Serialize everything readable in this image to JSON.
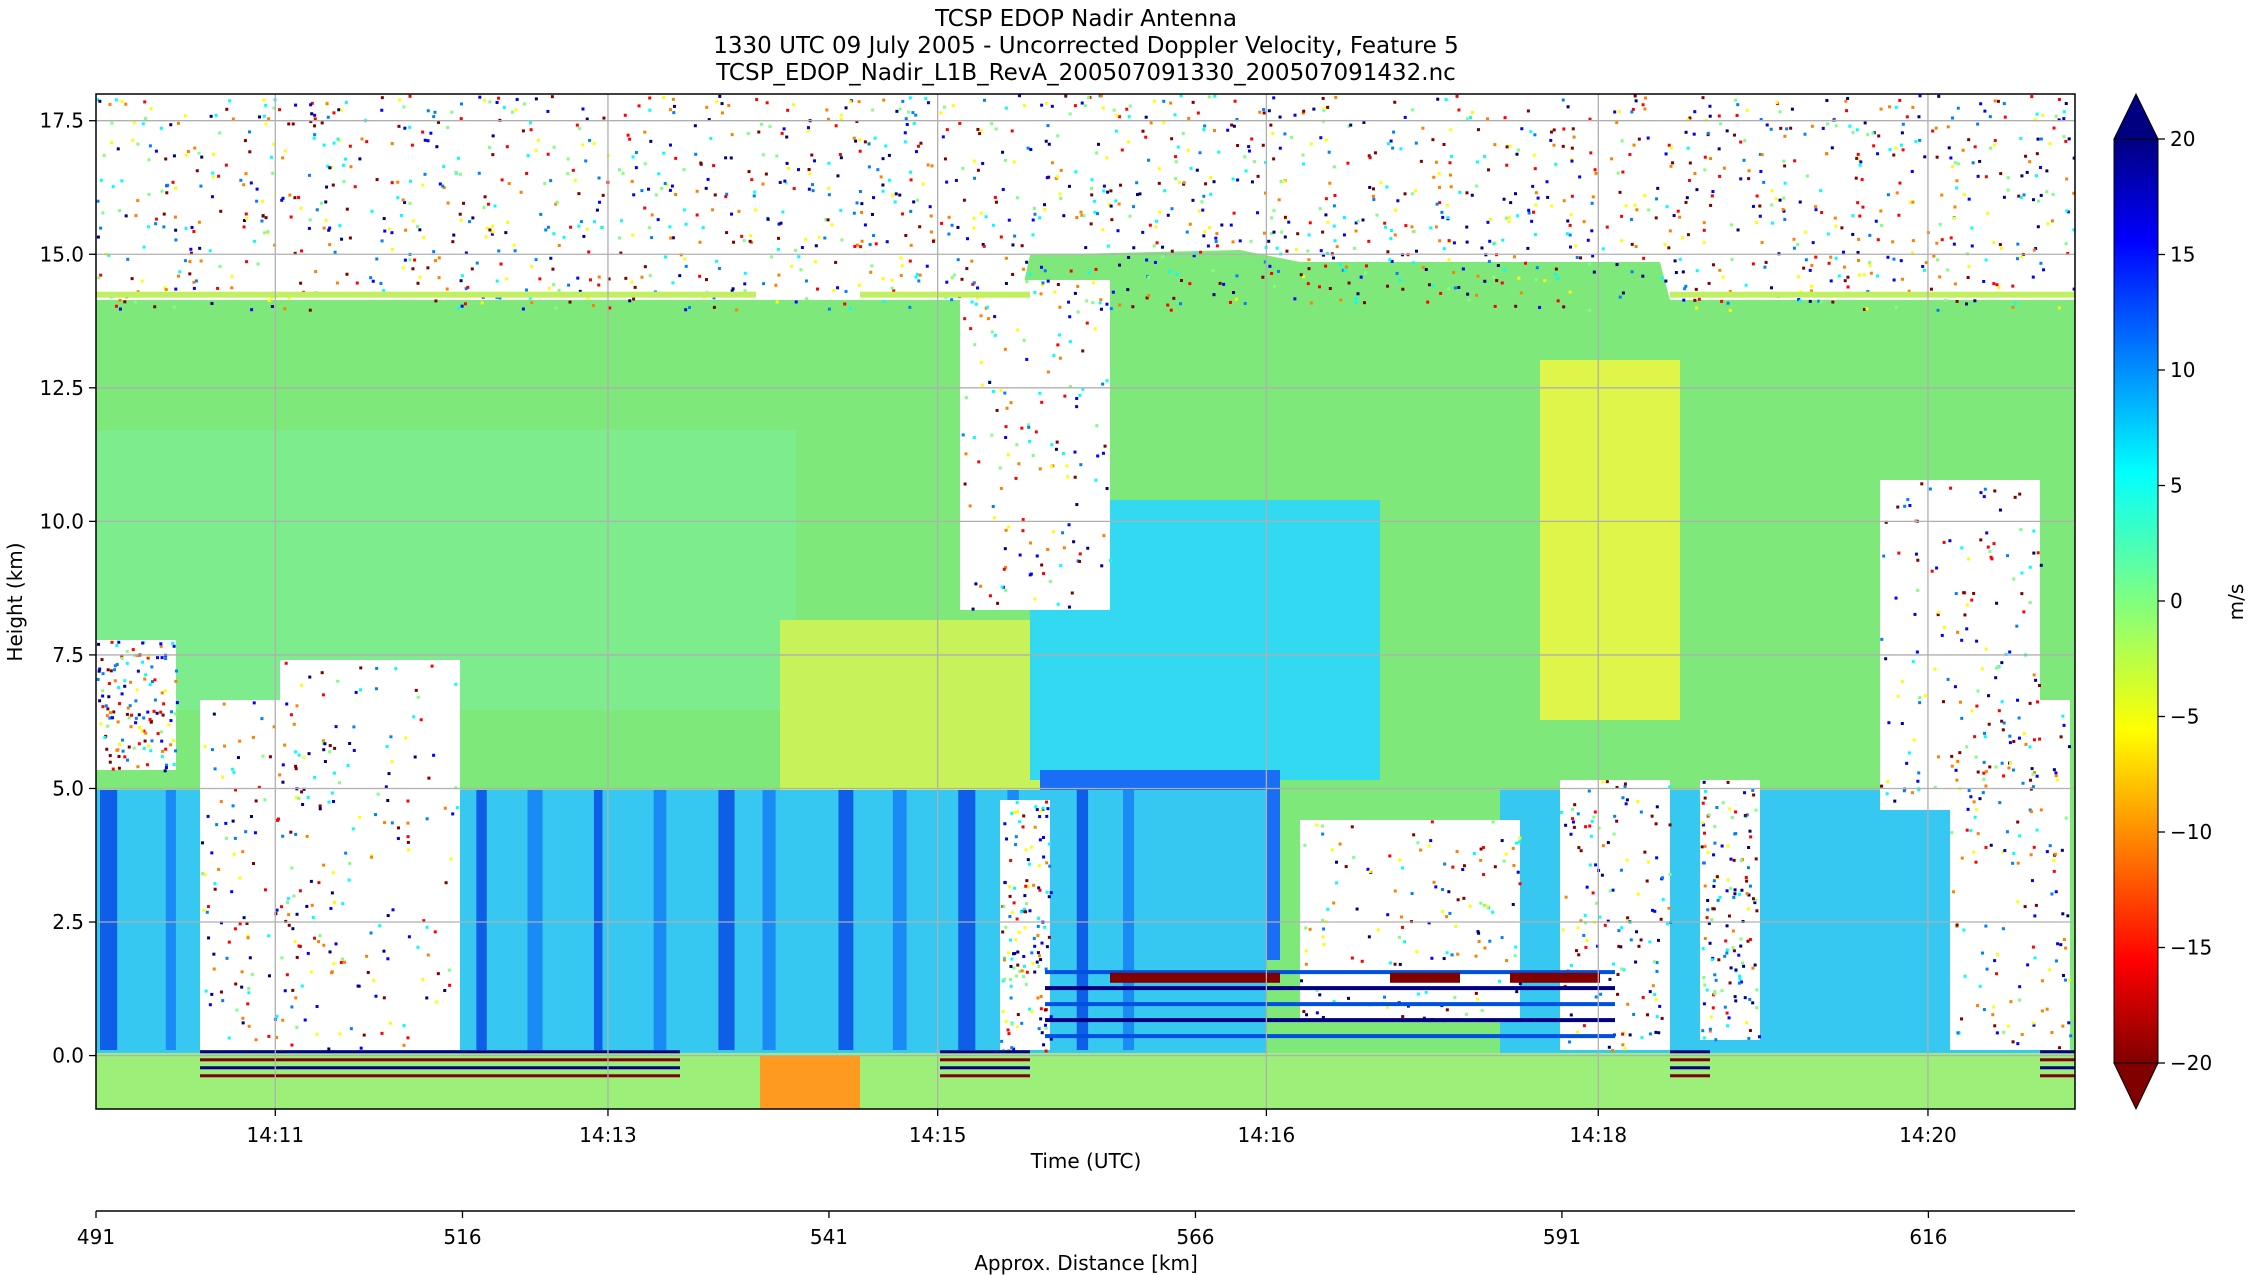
{
  "chart_data": {
    "type": "heatmap",
    "title_lines": [
      "TCSP EDOP Nadir Antenna",
      "1330 UTC 09 July 2005 - Uncorrected Doppler Velocity, Feature 5",
      "TCSP_EDOP_Nadir_L1B_RevA_200507091330_200507091432.nc"
    ],
    "xlabel": "Time (UTC)",
    "ylabel": "Height (km)",
    "x_ticks": [
      "14:11",
      "14:13",
      "14:15",
      "14:16",
      "14:18",
      "14:20"
    ],
    "x_tick_positions": [
      0.0906,
      0.2587,
      0.4253,
      0.5914,
      0.7591,
      0.9257
    ],
    "ylim": [
      -1.0,
      18.0
    ],
    "y_ticks": [
      0.0,
      2.5,
      5.0,
      7.5,
      10.0,
      12.5,
      15.0,
      17.5
    ],
    "y_tick_labels": [
      "0.0",
      "2.5",
      "5.0",
      "7.5",
      "10.0",
      "12.5",
      "15.0",
      "17.5"
    ],
    "grid": true,
    "secondary_axis": {
      "label": "Approx. Distance [km]",
      "range": [
        491,
        626
      ],
      "ticks": [
        491,
        516,
        541,
        566,
        591,
        616
      ]
    },
    "colorbar": {
      "label": "m/s",
      "range": [
        -20,
        20
      ],
      "ticks": [
        -20,
        -15,
        -10,
        -5,
        0,
        5,
        10,
        15,
        20
      ],
      "tick_labels": [
        "−20",
        "−15",
        "−10",
        "−5",
        "0",
        "5",
        "10",
        "15",
        "20"
      ],
      "colormap": "jet",
      "extend": "both"
    }
  },
  "colors": {
    "jet_stops": [
      "#000080",
      "#0000ff",
      "#0080ff",
      "#00ffff",
      "#80ff80",
      "#ffff00",
      "#ff8000",
      "#ff0000",
      "#800000"
    ],
    "grid": "#b0b0b0",
    "dominant": "#7fe87a"
  }
}
